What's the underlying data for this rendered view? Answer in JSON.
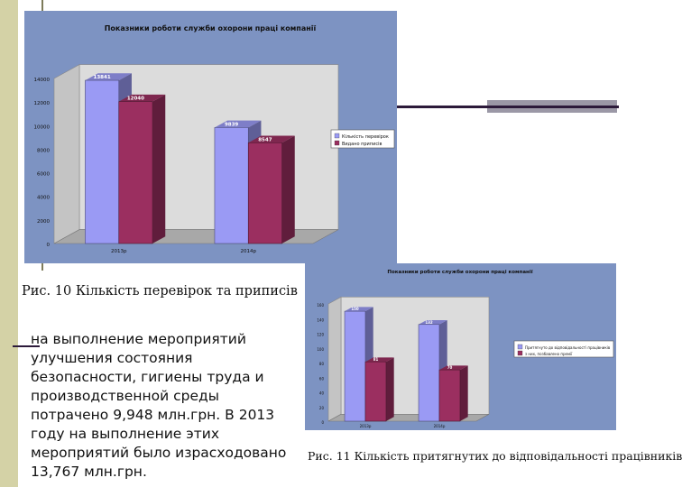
{
  "chart_data": [
    {
      "type": "bar",
      "title": "Показники роботи служби охорони праці компанії",
      "categories": [
        "2013р",
        "2014р"
      ],
      "series": [
        {
          "name": "Кількість перевірок",
          "values": [
            13841,
            9839
          ],
          "labels": [
            "13841",
            "9839"
          ],
          "color": "#9a9af4"
        },
        {
          "name": "Видано приписів",
          "values": [
            12040,
            8547
          ],
          "labels": [
            "12040",
            "8547"
          ],
          "color": "#9b2f60"
        }
      ],
      "ylim": [
        0,
        14000
      ],
      "yticks": [
        "0",
        "2000",
        "4000",
        "6000",
        "8000",
        "10000",
        "12000",
        "14000"
      ],
      "legend": "right",
      "grid": false,
      "caption": "Рис. 10 Кількість перевірок та приписів"
    },
    {
      "type": "bar",
      "title": "Показники роботи служби охорони праці компанії",
      "categories": [
        "2013р",
        "2014р"
      ],
      "series": [
        {
          "name": "Притягнуто до відповідальності працівників",
          "values": [
            150,
            132
          ],
          "labels": [
            "150",
            "132"
          ],
          "color": "#9a9af4"
        },
        {
          "name": "з них, позбавлено премії",
          "values": [
            81,
            70
          ],
          "labels": [
            "81",
            "70"
          ],
          "color": "#9b2f60"
        }
      ],
      "ylim": [
        0,
        160
      ],
      "yticks": [
        "0",
        "20",
        "40",
        "60",
        "80",
        "100",
        "120",
        "140",
        "160"
      ],
      "legend": "right",
      "grid": false,
      "caption": "Рис. 11 Кількість притягнутих до відповідальності працівників"
    }
  ],
  "body_text": "на выполнение мероприятий улучшения состояния безопасности, гигиены труда и производственной среды потрачено 9,948 млн.грн. В 2013 году на выполнение этих мероприятий было израсходовано 13,767 млн.грн."
}
